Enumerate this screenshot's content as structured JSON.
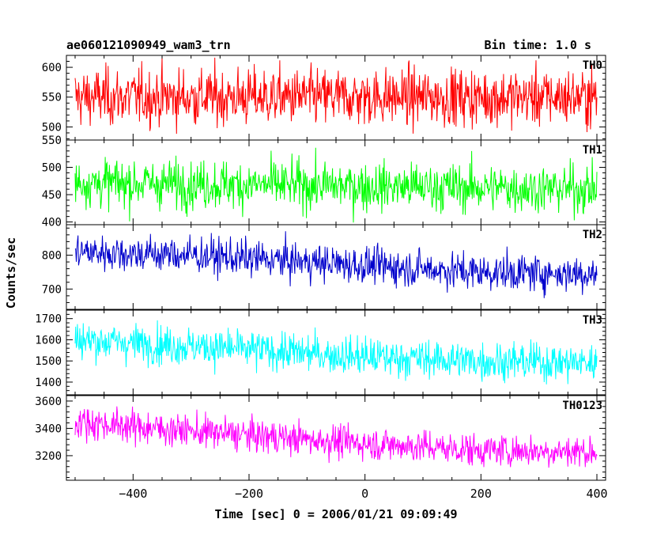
{
  "chart_data": {
    "type": "line",
    "title": "ae060121090949_wam3_trn",
    "bin_time_label": "Bin time: 1.0 s",
    "xlabel": "Time [sec] 0 = 2006/01/21 09:09:49",
    "ylabel": "Counts/sec",
    "xlim": [
      -515,
      415
    ],
    "x_range": [
      -500,
      400
    ],
    "x_ticks": [
      -400,
      -200,
      0,
      200,
      400
    ],
    "x_tick_labels": [
      "−400",
      "−200",
      "0",
      "200",
      "400"
    ],
    "grid": false,
    "panels": [
      {
        "name": "TH0",
        "color": "#ff0000",
        "ylim": [
          478,
          620
        ],
        "y_ticks": [
          500,
          550,
          600
        ],
        "y_tick_labels": [
          "500",
          "550",
          "600"
        ],
        "trend": [
          [
            -500,
            550
          ],
          [
            400,
            550
          ]
        ],
        "noise_sd": 24
      },
      {
        "name": "TH1",
        "color": "#00ff00",
        "ylim": [
          395,
          550
        ],
        "y_ticks": [
          400,
          450,
          500,
          550
        ],
        "y_tick_labels": [
          "400",
          "450",
          "500",
          "550"
        ],
        "trend": [
          [
            -500,
            472
          ],
          [
            400,
            460
          ]
        ],
        "noise_sd": 22
      },
      {
        "name": "TH2",
        "color": "#0000cc",
        "ylim": [
          640,
          890
        ],
        "y_ticks": [
          700,
          800
        ],
        "y_tick_labels": [
          "700",
          "800"
        ],
        "trend": [
          [
            -500,
            810
          ],
          [
            -300,
            800
          ],
          [
            0,
            770
          ],
          [
            200,
            750
          ],
          [
            400,
            745
          ]
        ],
        "noise_sd": 27
      },
      {
        "name": "TH3",
        "color": "#00ffff",
        "ylim": [
          1340,
          1740
        ],
        "y_ticks": [
          1400,
          1500,
          1600,
          1700
        ],
        "y_tick_labels": [
          "1400",
          "1500",
          "1600",
          "1700"
        ],
        "trend": [
          [
            -500,
            1600
          ],
          [
            -300,
            1570
          ],
          [
            0,
            1520
          ],
          [
            200,
            1500
          ],
          [
            400,
            1490
          ]
        ],
        "noise_sd": 45
      },
      {
        "name": "TH0123",
        "color": "#ff00ff",
        "ylim": [
          3020,
          3640
        ],
        "y_ticks": [
          3200,
          3400,
          3600
        ],
        "y_tick_labels": [
          "3200",
          "3400",
          "3600"
        ],
        "trend": [
          [
            -500,
            3450
          ],
          [
            -300,
            3380
          ],
          [
            0,
            3290
          ],
          [
            200,
            3240
          ],
          [
            400,
            3230
          ]
        ],
        "noise_sd": 60
      }
    ]
  }
}
